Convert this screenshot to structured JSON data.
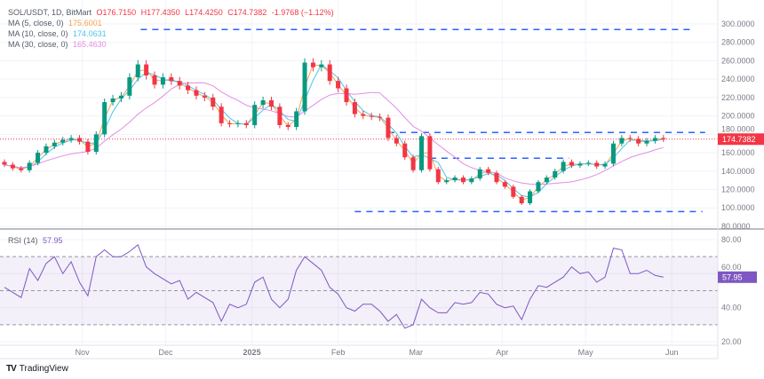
{
  "header": {
    "symbol": "SOL/USDT, 1D, BitMart",
    "open": "O176.7150",
    "high": "H177.4350",
    "low": "L174.4250",
    "close": "C174.7382",
    "change": "-1.9768 (−1.12%)"
  },
  "indicators": {
    "ma5": {
      "label": "MA (5, close, 0)",
      "value": "175.6001",
      "color": "#f7a24a"
    },
    "ma10": {
      "label": "MA (10, close, 0)",
      "value": "174.0631",
      "color": "#4fc3e8"
    },
    "ma30": {
      "label": "MA (30, close, 0)",
      "value": "165.4630",
      "color": "#e28ee0"
    },
    "rsi": {
      "label": "RSI (14)",
      "value": "57.95",
      "color": "#7e57c2"
    }
  },
  "price_badge": "174.7382",
  "rsi_badge": "57.95",
  "branding": "TradingView",
  "colors": {
    "up": "#089981",
    "down": "#f23645",
    "level": "#2962ff",
    "grid": "#f0f3fa"
  },
  "chart_data": [
    {
      "type": "candlestick",
      "title": "SOL/USDT, 1D, BitMart",
      "ylim": [
        80,
        300
      ],
      "y_ticks": [
        "300.0000",
        "280.0000",
        "260.0000",
        "240.0000",
        "220.0000",
        "200.0000",
        "180.0000",
        "160.0000",
        "140.0000",
        "120.0000",
        "100.0000",
        "80.0000"
      ],
      "x_ticks": [
        {
          "date": "2024-11-01",
          "label": "Nov"
        },
        {
          "date": "2024-12-01",
          "label": "Dec"
        },
        {
          "date": "2025-01-01",
          "label": "2025"
        },
        {
          "date": "2025-02-01",
          "label": "Feb"
        },
        {
          "date": "2025-03-01",
          "label": "Mar"
        },
        {
          "date": "2025-04-01",
          "label": "Apr"
        },
        {
          "date": "2025-05-01",
          "label": "May"
        },
        {
          "date": "2025-06-01",
          "label": "Jun"
        }
      ],
      "grid": true,
      "last_price": 174.7382,
      "first_open": 150,
      "closes": [
        [
          "2024-10-04",
          147
        ],
        [
          "2024-10-07",
          143
        ],
        [
          "2024-10-10",
          141
        ],
        [
          "2024-10-13",
          149
        ],
        [
          "2024-10-16",
          160
        ],
        [
          "2024-10-19",
          167
        ],
        [
          "2024-10-22",
          171
        ],
        [
          "2024-10-25",
          174
        ],
        [
          "2024-10-28",
          176
        ],
        [
          "2024-10-31",
          172
        ],
        [
          "2024-11-03",
          161
        ],
        [
          "2024-11-06",
          180
        ],
        [
          "2024-11-09",
          215
        ],
        [
          "2024-11-12",
          219
        ],
        [
          "2024-11-15",
          222
        ],
        [
          "2024-11-18",
          242
        ],
        [
          "2024-11-21",
          256
        ],
        [
          "2024-11-24",
          244
        ],
        [
          "2024-11-27",
          234
        ],
        [
          "2024-11-30",
          242
        ],
        [
          "2024-12-03",
          238
        ],
        [
          "2024-12-06",
          233
        ],
        [
          "2024-12-09",
          228
        ],
        [
          "2024-12-12",
          222
        ],
        [
          "2024-12-15",
          220
        ],
        [
          "2024-12-18",
          210
        ],
        [
          "2024-12-21",
          192
        ],
        [
          "2024-12-24",
          191
        ],
        [
          "2024-12-27",
          192
        ],
        [
          "2024-12-30",
          190
        ],
        [
          "2025-01-02",
          212
        ],
        [
          "2025-01-05",
          217
        ],
        [
          "2025-01-08",
          210
        ],
        [
          "2025-01-11",
          190
        ],
        [
          "2025-01-14",
          188
        ],
        [
          "2025-01-17",
          205
        ],
        [
          "2025-01-20",
          258
        ],
        [
          "2025-01-23",
          253
        ],
        [
          "2025-01-26",
          256
        ],
        [
          "2025-01-29",
          238
        ],
        [
          "2025-02-01",
          230
        ],
        [
          "2025-02-04",
          215
        ],
        [
          "2025-02-07",
          202
        ],
        [
          "2025-02-10",
          200
        ],
        [
          "2025-02-13",
          199
        ],
        [
          "2025-02-16",
          198
        ],
        [
          "2025-02-19",
          176
        ],
        [
          "2025-02-22",
          170
        ],
        [
          "2025-02-25",
          155
        ],
        [
          "2025-02-28",
          141
        ],
        [
          "2025-03-03",
          178
        ],
        [
          "2025-03-06",
          142
        ],
        [
          "2025-03-09",
          128
        ],
        [
          "2025-03-12",
          130
        ],
        [
          "2025-03-15",
          133
        ],
        [
          "2025-03-18",
          128
        ],
        [
          "2025-03-21",
          132
        ],
        [
          "2025-03-24",
          142
        ],
        [
          "2025-03-27",
          138
        ],
        [
          "2025-03-30",
          128
        ],
        [
          "2025-04-02",
          123
        ],
        [
          "2025-04-05",
          112
        ],
        [
          "2025-04-08",
          105
        ],
        [
          "2025-04-11",
          118
        ],
        [
          "2025-04-14",
          128
        ],
        [
          "2025-04-17",
          133
        ],
        [
          "2025-04-20",
          140
        ],
        [
          "2025-04-23",
          150
        ],
        [
          "2025-04-26",
          146
        ],
        [
          "2025-04-29",
          148
        ],
        [
          "2025-05-02",
          149
        ],
        [
          "2025-05-05",
          145
        ],
        [
          "2025-05-08",
          148
        ],
        [
          "2025-05-11",
          170
        ],
        [
          "2025-05-14",
          176
        ],
        [
          "2025-05-17",
          175
        ],
        [
          "2025-05-20",
          170
        ],
        [
          "2025-05-23",
          173
        ],
        [
          "2025-05-26",
          176
        ],
        [
          "2025-05-29",
          174.74
        ]
      ],
      "horizontal_levels": [
        {
          "price": 294,
          "start": "2024-11-22",
          "end": "2025-06-09"
        },
        {
          "price": 182,
          "start": "2025-02-19",
          "end": "2025-06-13"
        },
        {
          "price": 154,
          "start": "2025-03-06",
          "end": "2025-04-25"
        },
        {
          "price": 96,
          "start": "2025-02-07",
          "end": "2025-06-12"
        }
      ]
    },
    {
      "type": "line",
      "title": "RSI (14)",
      "ylim": [
        20,
        80
      ],
      "y_ticks": [
        "80.00",
        "60.00",
        "40.00",
        "20.00"
      ],
      "bands": {
        "upper": 70,
        "middle": 50,
        "lower": 30
      },
      "values": [
        52,
        49,
        46,
        63,
        56,
        66,
        70,
        60,
        67,
        55,
        47,
        70,
        74,
        70,
        70,
        73,
        77,
        64,
        60,
        57,
        54,
        56,
        45,
        49,
        46,
        43,
        32,
        42,
        40,
        42,
        55,
        58,
        45,
        40,
        45,
        62,
        70,
        66,
        62,
        52,
        48,
        40,
        38,
        42,
        42,
        38,
        32,
        36,
        28,
        30,
        45,
        40,
        37,
        37,
        43,
        42,
        43,
        49,
        48,
        42,
        40,
        41,
        33,
        45,
        53,
        52,
        55,
        58,
        64,
        60,
        61,
        55,
        58,
        75,
        74,
        60,
        60,
        62,
        59,
        57.95
      ]
    }
  ]
}
